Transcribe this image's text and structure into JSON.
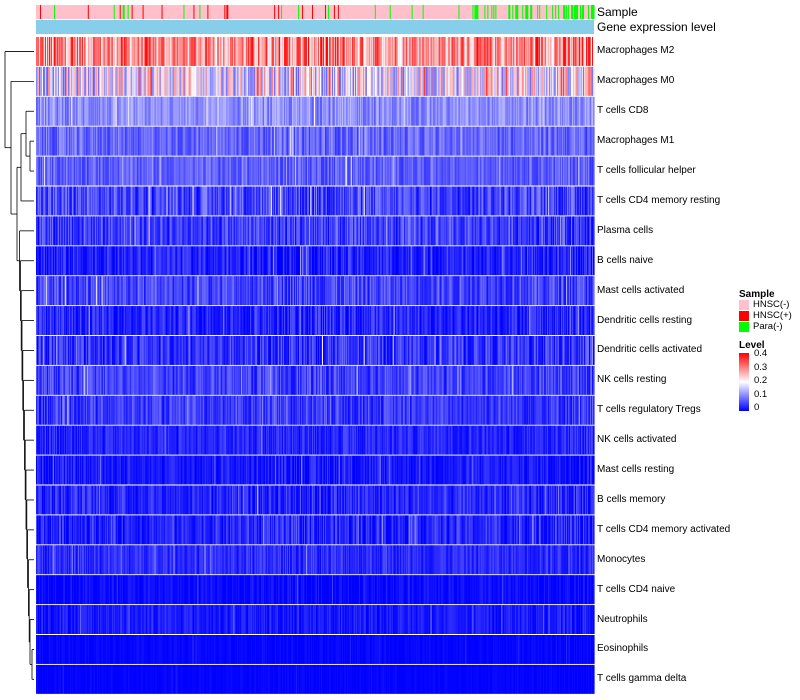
{
  "chart_data": {
    "type": "heatmap",
    "annotation_titles": [
      "Sample",
      "Gene expression level"
    ],
    "rows": [
      {
        "label": "Macrophages M2",
        "mean": 0.29,
        "spread": 0.11
      },
      {
        "label": "Macrophages M0",
        "mean": 0.19,
        "spread": 0.12
      },
      {
        "label": "T cells CD8",
        "mean": 0.11,
        "spread": 0.04
      },
      {
        "label": "Macrophages M1",
        "mean": 0.08,
        "spread": 0.04
      },
      {
        "label": "T cells follicular helper",
        "mean": 0.075,
        "spread": 0.035
      },
      {
        "label": "T cells CD4 memory resting",
        "mean": 0.055,
        "spread": 0.055
      },
      {
        "label": "Plasma cells",
        "mean": 0.05,
        "spread": 0.05
      },
      {
        "label": "B cells naive",
        "mean": 0.025,
        "spread": 0.04
      },
      {
        "label": "Mast cells activated",
        "mean": 0.055,
        "spread": 0.045
      },
      {
        "label": "Dendritic cells resting",
        "mean": 0.03,
        "spread": 0.04
      },
      {
        "label": "Dendritic cells activated",
        "mean": 0.04,
        "spread": 0.05
      },
      {
        "label": "NK cells resting",
        "mean": 0.05,
        "spread": 0.04
      },
      {
        "label": "T cells regulatory  Tregs",
        "mean": 0.045,
        "spread": 0.04
      },
      {
        "label": "NK cells activated",
        "mean": 0.03,
        "spread": 0.03
      },
      {
        "label": "Mast cells resting",
        "mean": 0.02,
        "spread": 0.03
      },
      {
        "label": "B cells memory",
        "mean": 0.03,
        "spread": 0.04
      },
      {
        "label": "T cells CD4 memory activated",
        "mean": 0.03,
        "spread": 0.04
      },
      {
        "label": "Monocytes",
        "mean": 0.035,
        "spread": 0.03
      },
      {
        "label": "T cells CD4 naive",
        "mean": 0.008,
        "spread": 0.02
      },
      {
        "label": "Neutrophils",
        "mean": 0.02,
        "spread": 0.025
      },
      {
        "label": "Eosinophils",
        "mean": 0.003,
        "spread": 0.01
      },
      {
        "label": "T cells gamma delta",
        "mean": 0.002,
        "spread": 0.008
      }
    ],
    "sample_groups": [
      {
        "name": "HNSC(-)",
        "color": "#ffc0cb",
        "share": 0.88
      },
      {
        "name": "HNSC(+)",
        "color": "#ff0000",
        "share": 0.05
      },
      {
        "name": "Para(-)",
        "color": "#00ff00",
        "share": 0.07
      }
    ],
    "gene_expression_color": "#87ceeb",
    "n_samples": 560,
    "level_legend": {
      "title": "Level",
      "ticks": [
        "0.4",
        "0.3",
        "0.2",
        "0.1",
        "0"
      ],
      "range": [
        0,
        0.4
      ],
      "colors": {
        "high": "#ff0000",
        "mid": "#ffffff",
        "low": "#0000ff"
      }
    },
    "sample_legend_title": "Sample"
  }
}
